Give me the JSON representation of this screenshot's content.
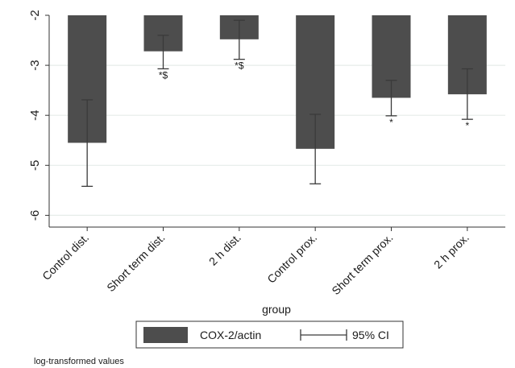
{
  "chart_data": {
    "type": "bar",
    "categories": [
      "Control dist.",
      "Short term dist.",
      "2 h dist.",
      "Control prox.",
      "Short term prox.",
      "2 h prox."
    ],
    "series": [
      {
        "name": "COX-2/actin",
        "values": [
          -4.55,
          -2.72,
          -2.48,
          -4.67,
          -3.65,
          -3.58
        ],
        "ci_low": [
          -5.42,
          -3.07,
          -2.88,
          -5.37,
          -4.01,
          -4.08
        ],
        "ci_high": [
          -3.69,
          -2.4,
          -2.1,
          -3.98,
          -3.3,
          -3.07
        ],
        "significance": [
          "",
          "*$",
          "*$",
          "",
          "*",
          "*"
        ]
      }
    ],
    "bar_baseline": -2,
    "ylim": [
      -6.2,
      -2
    ],
    "yticks": [
      -2,
      -3,
      -4,
      -5,
      -6
    ],
    "xlabel": "group",
    "ylabel": "",
    "legend": {
      "position": "bottom",
      "bar_label": "COX-2/actin",
      "ci_label": "95% CI"
    },
    "note": "log-transformed values",
    "grid": true,
    "colors": {
      "bar": "#4d4d4d",
      "errorbar": "#3a3a3a",
      "grid": "#e6ece9",
      "axis": "#333333"
    }
  }
}
